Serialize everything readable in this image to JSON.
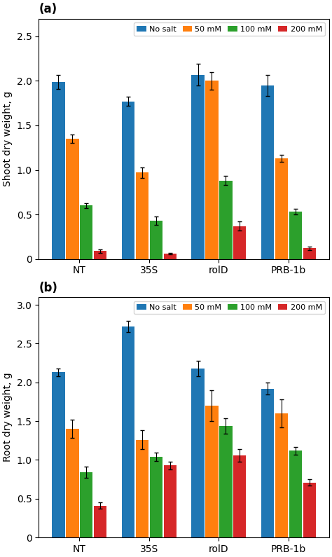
{
  "chart_data": [
    {
      "type": "bar",
      "title": "(a)",
      "categories": [
        "NT",
        "35S",
        "rolD",
        "PRB-1b"
      ],
      "y_label": "Shoot dry weight, g",
      "ylim": [
        0,
        2.7
      ],
      "yticks": [
        0,
        0.5,
        1.0,
        1.5,
        2.0,
        2.5
      ],
      "legend": "upper right",
      "series": [
        {
          "name": "No salt",
          "values": [
            1.99,
            1.77,
            2.07,
            1.95
          ],
          "errors": [
            0.08,
            0.05,
            0.12,
            0.12
          ]
        },
        {
          "name": "50 mM",
          "values": [
            1.35,
            0.97,
            2.0,
            1.13
          ],
          "errors": [
            0.05,
            0.06,
            0.1,
            0.04
          ]
        },
        {
          "name": "100 mM",
          "values": [
            0.6,
            0.43,
            0.88,
            0.53
          ],
          "errors": [
            0.03,
            0.05,
            0.05,
            0.03
          ]
        },
        {
          "name": "200 mM",
          "values": [
            0.09,
            0.06,
            0.37,
            0.12
          ],
          "errors": [
            0.02,
            0.01,
            0.05,
            0.02
          ]
        }
      ]
    },
    {
      "type": "bar",
      "title": "(b)",
      "categories": [
        "NT",
        "35S",
        "rolD",
        "PRB-1b"
      ],
      "y_label": "Root dry weight, g",
      "ylim": [
        0,
        3.1
      ],
      "yticks": [
        0,
        0.5,
        1.0,
        1.5,
        2.0,
        2.5,
        3.0
      ],
      "legend": "upper right",
      "series": [
        {
          "name": "No salt",
          "values": [
            2.13,
            2.72,
            2.18,
            1.92
          ],
          "errors": [
            0.05,
            0.07,
            0.1,
            0.08
          ]
        },
        {
          "name": "50 mM",
          "values": [
            1.4,
            1.26,
            1.7,
            1.6
          ],
          "errors": [
            0.12,
            0.12,
            0.2,
            0.18
          ]
        },
        {
          "name": "100 mM",
          "values": [
            0.84,
            1.04,
            1.44,
            1.12
          ],
          "errors": [
            0.07,
            0.05,
            0.1,
            0.05
          ]
        },
        {
          "name": "200 mM",
          "values": [
            0.41,
            0.93,
            1.06,
            0.71
          ],
          "errors": [
            0.04,
            0.05,
            0.08,
            0.04
          ]
        }
      ]
    }
  ]
}
